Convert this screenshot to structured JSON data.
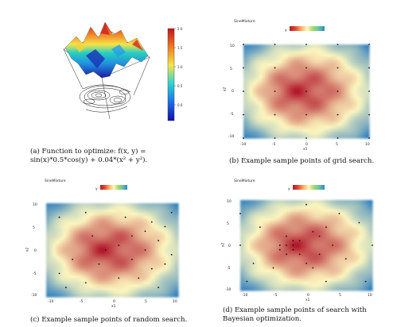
{
  "panel_a": {
    "caption": "(a) Function to optimize: f(x, y) = sin(x)*0.5*cos(y) + 0.04*(x² + y²).",
    "colorbar_ticks": [
      "2.0",
      "1.5",
      "1.0",
      "0.5",
      "0.0"
    ]
  },
  "panel_b": {
    "title": "SineMixture",
    "legend_label": "y",
    "xlabel": "x1",
    "ylabel": "x2",
    "caption": "(b) Example sample points of grid search.",
    "x_ticks": [
      "-10",
      "-5",
      "0",
      "5",
      "10"
    ],
    "y_ticks": [
      "10",
      "5",
      "0",
      "-5",
      "-10"
    ]
  },
  "panel_c": {
    "title": "SineMixture",
    "legend_label": "y",
    "xlabel": "x1",
    "ylabel": "x2",
    "caption": "(c) Example sample points of random search.",
    "x_ticks": [
      "-10",
      "-5",
      "0",
      "5",
      "10"
    ],
    "y_ticks": [
      "10",
      "5",
      "0",
      "-5",
      "-10"
    ]
  },
  "panel_d": {
    "title": "SineMixture",
    "legend_label": "y",
    "xlabel": "x1",
    "ylabel": "x2",
    "caption": "(d) Example sample points of search with Bayesian optimization.",
    "x_ticks": [
      "-10",
      "-5",
      "0",
      "5",
      "10"
    ],
    "y_ticks": [
      "10",
      "5",
      "0",
      "-5",
      "-10"
    ]
  },
  "colors": {
    "heat_low": "#2f7fbf",
    "heat_mid": "#fdf7bf",
    "heat_high": "#b2182b"
  },
  "chart_data": [
    {
      "type": "heatmap",
      "title": "SineMixture",
      "xlabel": "x1",
      "ylabel": "x2",
      "xlim": [
        -10,
        10
      ],
      "ylim": [
        -10,
        10
      ],
      "sample_points": [
        [
          -10,
          10
        ],
        [
          -5,
          10
        ],
        [
          0,
          10
        ],
        [
          5,
          10
        ],
        [
          10,
          10
        ],
        [
          -10,
          5
        ],
        [
          -5,
          5
        ],
        [
          0,
          5
        ],
        [
          5,
          5
        ],
        [
          10,
          5
        ],
        [
          -10,
          0
        ],
        [
          -5,
          0
        ],
        [
          0,
          0
        ],
        [
          5,
          0
        ],
        [
          10,
          0
        ],
        [
          -10,
          -5
        ],
        [
          -5,
          -5
        ],
        [
          0,
          -5
        ],
        [
          5,
          -5
        ],
        [
          10,
          -5
        ],
        [
          -10,
          -10
        ],
        [
          -5,
          -10
        ],
        [
          0,
          -10
        ],
        [
          5,
          -10
        ],
        [
          10,
          -10
        ]
      ]
    },
    {
      "type": "heatmap",
      "title": "SineMixture",
      "xlabel": "x1",
      "ylabel": "x2",
      "xlim": [
        -10,
        10
      ],
      "ylim": [
        -10,
        10
      ],
      "sample_points": [
        [
          -4,
          8
        ],
        [
          -8,
          7
        ],
        [
          2,
          7
        ],
        [
          6,
          6
        ],
        [
          8,
          5
        ],
        [
          5,
          4
        ],
        [
          3,
          3
        ],
        [
          -3,
          3
        ],
        [
          7,
          2
        ],
        [
          1,
          1
        ],
        [
          5,
          0
        ],
        [
          -1,
          0
        ],
        [
          9,
          -1
        ],
        [
          -6,
          -2
        ],
        [
          3,
          -2
        ],
        [
          8,
          -3
        ],
        [
          -2,
          -3
        ],
        [
          6,
          -4
        ],
        [
          -8,
          -5
        ],
        [
          1,
          -6
        ],
        [
          4,
          -6
        ],
        [
          -4,
          -7
        ],
        [
          -7,
          -8
        ],
        [
          7,
          -8
        ],
        [
          9,
          8
        ]
      ]
    },
    {
      "type": "heatmap",
      "title": "SineMixture",
      "xlabel": "x1",
      "ylabel": "x2",
      "xlim": [
        -10,
        10
      ],
      "ylim": [
        -10,
        10
      ],
      "sample_points": [
        [
          0,
          9
        ],
        [
          5,
          7
        ],
        [
          8,
          5
        ],
        [
          -7,
          4
        ],
        [
          3,
          4
        ],
        [
          1,
          3
        ],
        [
          2,
          2
        ],
        [
          -3,
          2
        ],
        [
          -2,
          1
        ],
        [
          -1,
          1
        ],
        [
          -4,
          0
        ],
        [
          -3,
          0
        ],
        [
          -2,
          -1
        ],
        [
          -2,
          0
        ],
        [
          4,
          0
        ],
        [
          -4,
          -1
        ],
        [
          -3,
          -2
        ],
        [
          -1,
          -2
        ],
        [
          2,
          -2
        ],
        [
          6,
          -3
        ],
        [
          -8,
          -4
        ],
        [
          0,
          -4
        ],
        [
          -5,
          -5
        ],
        [
          1,
          -5
        ],
        [
          -9,
          -8
        ],
        [
          3,
          -8
        ],
        [
          10,
          0
        ],
        [
          -10,
          0
        ],
        [
          9,
          -8
        ],
        [
          -10,
          7
        ]
      ]
    }
  ]
}
